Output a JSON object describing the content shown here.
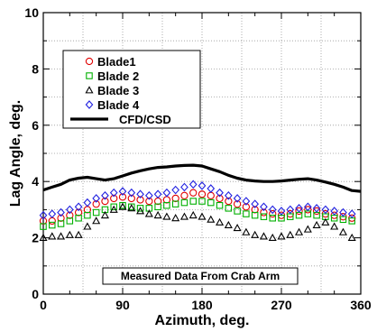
{
  "chart_data": {
    "type": "line",
    "title": "",
    "xlabel": "Azimuth, deg.",
    "ylabel": "Lag Angle, deg.",
    "xlim": [
      0,
      360
    ],
    "ylim": [
      0,
      10
    ],
    "x_ticks": [
      0,
      90,
      180,
      270,
      360
    ],
    "y_ticks": [
      0,
      2,
      4,
      6,
      8,
      10
    ],
    "x_ticks_text": [
      "0",
      "90",
      "180",
      "270",
      "360"
    ],
    "y_ticks_text": [
      "0",
      "2",
      "4",
      "6",
      "8",
      "10"
    ],
    "grid": true,
    "legend_position": "top-left",
    "annotation": "Measured Data From Crab Arm",
    "series": [
      {
        "name": "Blade1",
        "marker": "circle",
        "color": "#e00000",
        "x": [
          0,
          10,
          20,
          30,
          40,
          50,
          60,
          70,
          80,
          90,
          100,
          110,
          120,
          130,
          140,
          150,
          160,
          170,
          180,
          190,
          200,
          210,
          220,
          230,
          240,
          250,
          260,
          270,
          280,
          290,
          300,
          310,
          320,
          330,
          340,
          350
        ],
        "y": [
          2.6,
          2.6,
          2.7,
          2.8,
          2.9,
          3.0,
          3.2,
          3.3,
          3.4,
          3.45,
          3.4,
          3.35,
          3.3,
          3.3,
          3.35,
          3.4,
          3.5,
          3.6,
          3.55,
          3.5,
          3.4,
          3.3,
          3.2,
          3.1,
          3.0,
          2.9,
          2.85,
          2.8,
          2.85,
          2.95,
          3.0,
          2.95,
          2.85,
          2.8,
          2.75,
          2.7
        ]
      },
      {
        "name": "Blade 2",
        "marker": "square",
        "color": "#00b000",
        "x": [
          0,
          10,
          20,
          30,
          40,
          50,
          60,
          70,
          80,
          90,
          100,
          110,
          120,
          130,
          140,
          150,
          160,
          170,
          180,
          190,
          200,
          210,
          220,
          230,
          240,
          250,
          260,
          270,
          280,
          290,
          300,
          310,
          320,
          330,
          340,
          350
        ],
        "y": [
          2.4,
          2.45,
          2.5,
          2.6,
          2.7,
          2.8,
          2.9,
          3.0,
          3.1,
          3.15,
          3.1,
          3.05,
          3.05,
          3.1,
          3.15,
          3.2,
          3.25,
          3.3,
          3.3,
          3.25,
          3.15,
          3.05,
          2.95,
          2.85,
          2.8,
          2.75,
          2.7,
          2.7,
          2.75,
          2.8,
          2.85,
          2.8,
          2.75,
          2.7,
          2.65,
          2.6
        ]
      },
      {
        "name": "Blade 3",
        "marker": "triangle",
        "color": "#000000",
        "x": [
          0,
          10,
          20,
          30,
          40,
          50,
          60,
          70,
          80,
          90,
          100,
          110,
          120,
          130,
          140,
          150,
          160,
          170,
          180,
          190,
          200,
          210,
          220,
          230,
          240,
          250,
          260,
          270,
          280,
          290,
          300,
          310,
          320,
          330,
          340,
          350
        ],
        "y": [
          2.0,
          2.05,
          2.05,
          2.1,
          2.1,
          2.4,
          2.6,
          2.8,
          3.0,
          3.1,
          3.05,
          2.95,
          2.85,
          2.8,
          2.75,
          2.7,
          2.75,
          2.8,
          2.75,
          2.65,
          2.55,
          2.45,
          2.35,
          2.2,
          2.1,
          2.05,
          2.0,
          2.05,
          2.1,
          2.2,
          2.3,
          2.45,
          2.55,
          2.4,
          2.2,
          2.0
        ]
      },
      {
        "name": "Blade 4",
        "marker": "diamond",
        "color": "#2020e0",
        "x": [
          0,
          10,
          20,
          30,
          40,
          50,
          60,
          70,
          80,
          90,
          100,
          110,
          120,
          130,
          140,
          150,
          160,
          170,
          180,
          190,
          200,
          210,
          220,
          230,
          240,
          250,
          260,
          270,
          280,
          290,
          300,
          310,
          320,
          330,
          340,
          350
        ],
        "y": [
          2.8,
          2.85,
          2.9,
          3.0,
          3.1,
          3.25,
          3.4,
          3.5,
          3.6,
          3.65,
          3.6,
          3.55,
          3.5,
          3.55,
          3.6,
          3.7,
          3.8,
          3.9,
          3.85,
          3.75,
          3.6,
          3.5,
          3.4,
          3.3,
          3.2,
          3.1,
          3.0,
          2.95,
          3.0,
          3.05,
          3.1,
          3.05,
          3.0,
          2.95,
          2.9,
          2.85
        ]
      },
      {
        "name": "CFD/CSD",
        "marker": "none",
        "color": "#000000",
        "x": [
          0,
          10,
          20,
          30,
          40,
          50,
          60,
          70,
          80,
          90,
          100,
          110,
          120,
          130,
          140,
          150,
          160,
          170,
          180,
          190,
          200,
          210,
          220,
          230,
          240,
          250,
          260,
          270,
          280,
          290,
          300,
          310,
          320,
          330,
          340,
          350,
          360
        ],
        "y": [
          3.7,
          3.8,
          3.9,
          4.05,
          4.12,
          4.15,
          4.1,
          4.05,
          4.1,
          4.2,
          4.3,
          4.38,
          4.45,
          4.5,
          4.52,
          4.55,
          4.57,
          4.58,
          4.55,
          4.45,
          4.35,
          4.22,
          4.12,
          4.05,
          4.02,
          4.0,
          4.0,
          4.02,
          4.05,
          4.08,
          4.1,
          4.05,
          3.98,
          3.9,
          3.8,
          3.68,
          3.65
        ]
      }
    ]
  }
}
